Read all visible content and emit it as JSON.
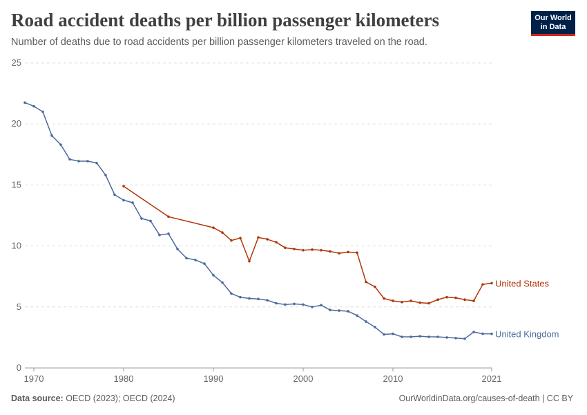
{
  "header": {
    "title": "Road accident deaths per billion passenger kilometers",
    "subtitle": "Number of deaths due to road accidents per billion passenger kilometers traveled on the road."
  },
  "logo": {
    "line1": "Our World",
    "line2": "in Data"
  },
  "footer": {
    "source_label": "Data source:",
    "source_text": " OECD (2023); OECD (2024)",
    "right_text": "OurWorldinData.org/causes-of-death | CC BY"
  },
  "chart_data": {
    "type": "line",
    "title": "Road accident deaths per billion passenger kilometers",
    "subtitle": "Number of deaths due to road accidents per billion passenger kilometers traveled on the road.",
    "xlim": [
      1970,
      2021
    ],
    "ylim": [
      0,
      25
    ],
    "xticks": [
      1970,
      1980,
      1990,
      2000,
      2010,
      2021
    ],
    "yticks": [
      0,
      5,
      10,
      15,
      20,
      25
    ],
    "grid": "horizontal dashed",
    "legend": "inline labels at line ends (right)",
    "series": [
      {
        "name": "United States",
        "color": "#b13507",
        "x": [
          1980,
          1985,
          1990,
          1991,
          1992,
          1993,
          1994,
          1995,
          1996,
          1997,
          1998,
          1999,
          2000,
          2001,
          2002,
          2003,
          2004,
          2005,
          2006,
          2007,
          2008,
          2009,
          2010,
          2011,
          2012,
          2013,
          2014,
          2015,
          2016,
          2017,
          2018,
          2019,
          2020,
          2021
        ],
        "y": [
          14.9,
          12.4,
          11.5,
          11.1,
          10.45,
          10.65,
          8.75,
          10.7,
          10.55,
          10.3,
          9.85,
          9.75,
          9.65,
          9.7,
          9.65,
          9.55,
          9.4,
          9.5,
          9.45,
          7.05,
          6.65,
          5.7,
          5.5,
          5.4,
          5.5,
          5.35,
          5.3,
          5.6,
          5.8,
          5.75,
          5.6,
          5.5,
          6.85,
          6.95
        ]
      },
      {
        "name": "United Kingdom",
        "color": "#4c6a9c",
        "x": [
          1969,
          1970,
          1971,
          1972,
          1973,
          1974,
          1975,
          1976,
          1977,
          1978,
          1979,
          1980,
          1981,
          1982,
          1983,
          1984,
          1985,
          1986,
          1987,
          1988,
          1989,
          1990,
          1991,
          1992,
          1993,
          1994,
          1995,
          1996,
          1997,
          1998,
          1999,
          2000,
          2001,
          2002,
          2003,
          2004,
          2005,
          2006,
          2007,
          2008,
          2009,
          2010,
          2011,
          2012,
          2013,
          2014,
          2015,
          2016,
          2017,
          2018,
          2019,
          2020,
          2021
        ],
        "y": [
          21.75,
          21.45,
          21.0,
          19.05,
          18.3,
          17.1,
          16.95,
          16.95,
          16.8,
          15.8,
          14.2,
          13.75,
          13.55,
          12.25,
          12.05,
          10.9,
          11.0,
          9.75,
          9.0,
          8.85,
          8.55,
          7.6,
          7.0,
          6.1,
          5.8,
          5.7,
          5.65,
          5.55,
          5.3,
          5.2,
          5.25,
          5.2,
          5.0,
          5.15,
          4.75,
          4.7,
          4.65,
          4.3,
          3.8,
          3.35,
          2.75,
          2.8,
          2.55,
          2.55,
          2.6,
          2.55,
          2.55,
          2.5,
          2.45,
          2.4,
          2.95,
          2.8,
          2.8
        ]
      }
    ]
  }
}
